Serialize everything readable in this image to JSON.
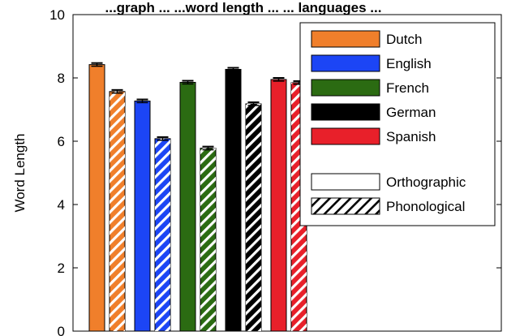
{
  "chart_data": {
    "type": "bar",
    "title": "...graph ... ...word length ... ... languages ...",
    "xlabel": "",
    "ylabel": "Word Length",
    "ylim": [
      0,
      10
    ],
    "yticks": [
      "0",
      "2",
      "4",
      "6",
      "8",
      "10"
    ],
    "grid": false,
    "legend_position": "top-right",
    "series": [
      {
        "name": "Dutch",
        "color": "#f07f2b",
        "orthographic": 8.42,
        "phonological": 7.57,
        "orthographic_err": 0.05,
        "phonological_err": 0.05
      },
      {
        "name": "English",
        "color": "#1c45f5",
        "orthographic": 7.27,
        "phonological": 6.08,
        "orthographic_err": 0.05,
        "phonological_err": 0.05
      },
      {
        "name": "French",
        "color": "#2b6b12",
        "orthographic": 7.86,
        "phonological": 5.78,
        "orthographic_err": 0.05,
        "phonological_err": 0.05
      },
      {
        "name": "German",
        "color": "#000000",
        "orthographic": 8.27,
        "phonological": 7.18,
        "orthographic_err": 0.05,
        "phonological_err": 0.05
      },
      {
        "name": "Spanish",
        "color": "#e8202a",
        "orthographic": 7.95,
        "phonological": 7.85,
        "orthographic_err": 0.05,
        "phonological_err": 0.05
      }
    ],
    "styles": [
      {
        "name": "Orthographic",
        "pattern": "solid"
      },
      {
        "name": "Phonological",
        "pattern": "hatched"
      }
    ]
  }
}
